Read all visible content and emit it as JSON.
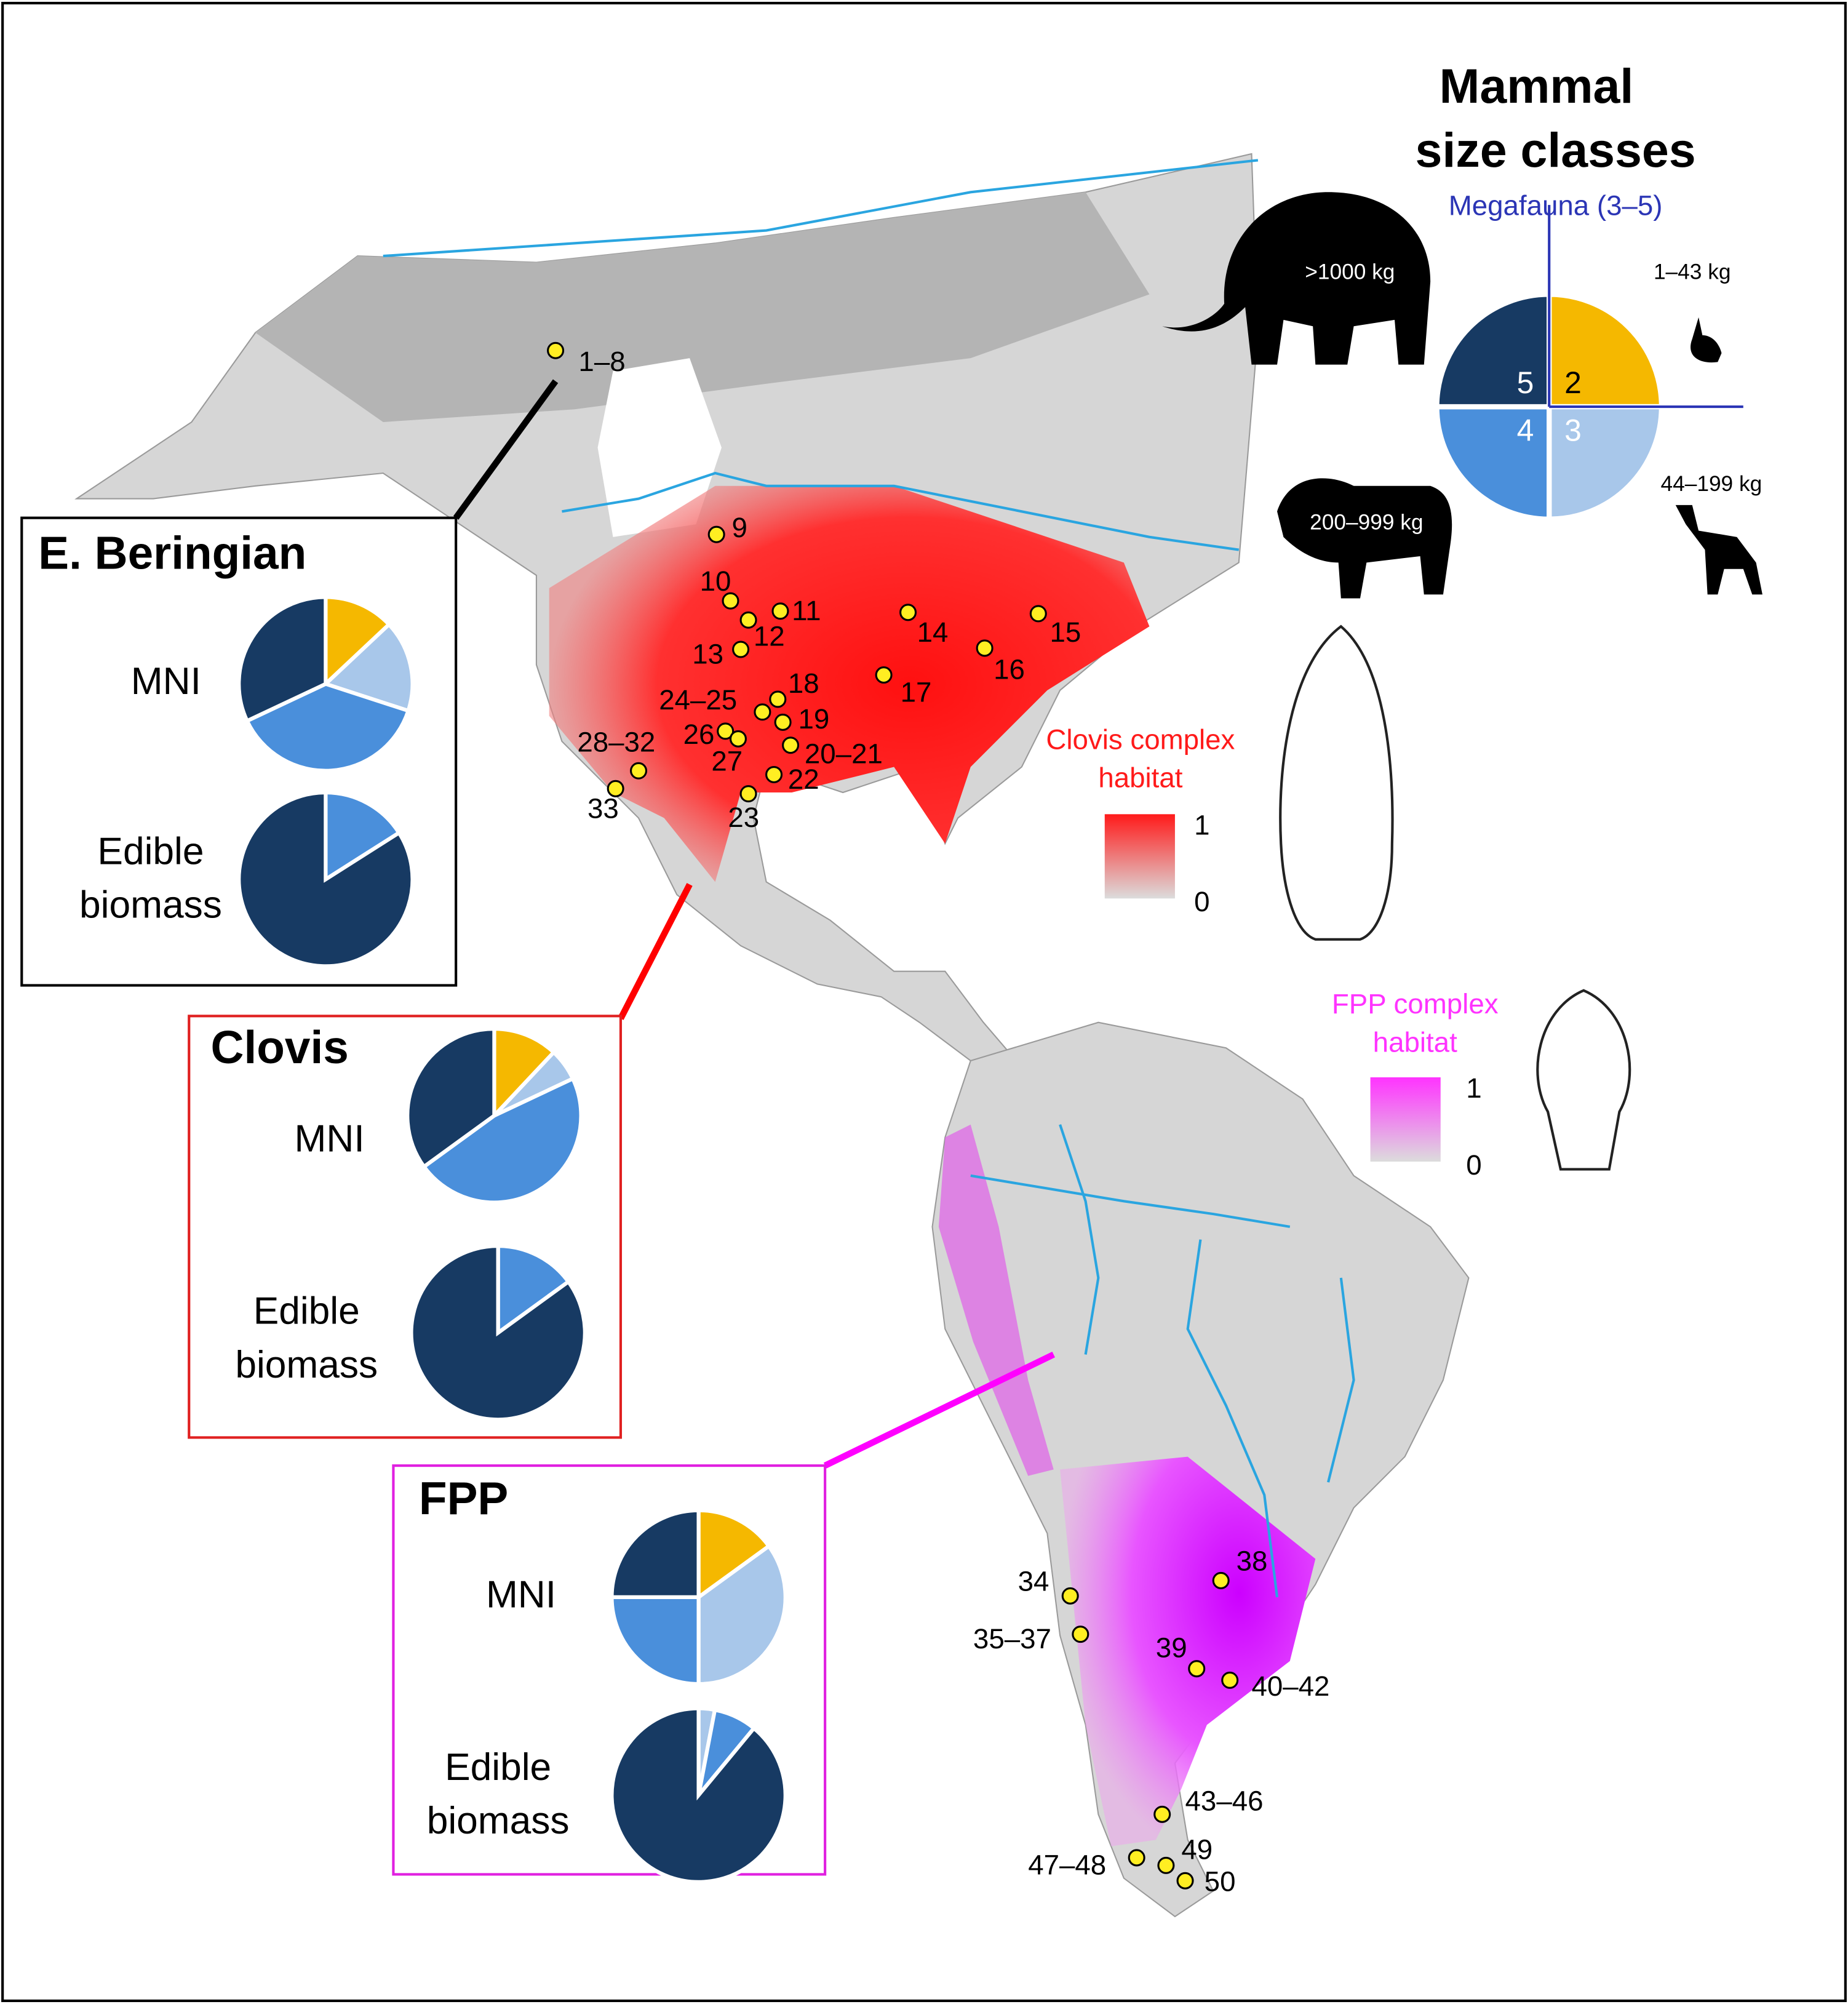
{
  "title_lines": [
    "Mammal",
    "size classes"
  ],
  "megafauna_label": "Megafauna (3–5)",
  "size_classes": [
    {
      "class": 2,
      "weight": "1–43 kg",
      "color": "#f5b800"
    },
    {
      "class": 3,
      "weight": "44–199 kg",
      "color": "#a8c7ea"
    },
    {
      "class": 4,
      "weight": "200–999 kg",
      "color": "#4a8fdb"
    },
    {
      "class": 5,
      "weight": ">1000 kg",
      "color": "#173a63"
    }
  ],
  "habitat_legends": [
    {
      "label_lines": [
        "Clovis complex",
        "habitat"
      ],
      "color": "#ff1a1a",
      "max": 1,
      "min": 0
    },
    {
      "label_lines": [
        "FPP complex",
        "habitat"
      ],
      "color": "#ff33ff",
      "max": 1,
      "min": 0
    }
  ],
  "sites": [
    "1–8",
    "9",
    "10",
    "11",
    "12",
    "13",
    "14",
    "15",
    "16",
    "17",
    "18",
    "19",
    "20–21",
    "22",
    "23",
    "24–25",
    "26",
    "27",
    "28–32",
    "33",
    "34",
    "35–37",
    "38",
    "39",
    "40–42",
    "43–46",
    "47–48",
    "49",
    "50"
  ],
  "panels": [
    {
      "title": "E. Beringian",
      "border": "#000000",
      "charts": [
        {
          "label_lines": [
            "MNI"
          ],
          "values": [
            13,
            17,
            38,
            32
          ]
        },
        {
          "label_lines": [
            "Edible",
            "biomass"
          ],
          "values": [
            0,
            0,
            16,
            84
          ]
        }
      ]
    },
    {
      "title": "Clovis",
      "border": "#e02020",
      "charts": [
        {
          "label_lines": [
            "MNI"
          ],
          "values": [
            12,
            6,
            47,
            35
          ]
        },
        {
          "label_lines": [
            "Edible",
            "biomass"
          ],
          "values": [
            0,
            0,
            15,
            85
          ]
        }
      ]
    },
    {
      "title": "FPP",
      "border": "#e020e0",
      "charts": [
        {
          "label_lines": [
            "MNI"
          ],
          "values": [
            15,
            35,
            25,
            25
          ]
        },
        {
          "label_lines": [
            "Edible",
            "biomass"
          ],
          "values": [
            0,
            3,
            8,
            89
          ]
        }
      ]
    }
  ]
}
